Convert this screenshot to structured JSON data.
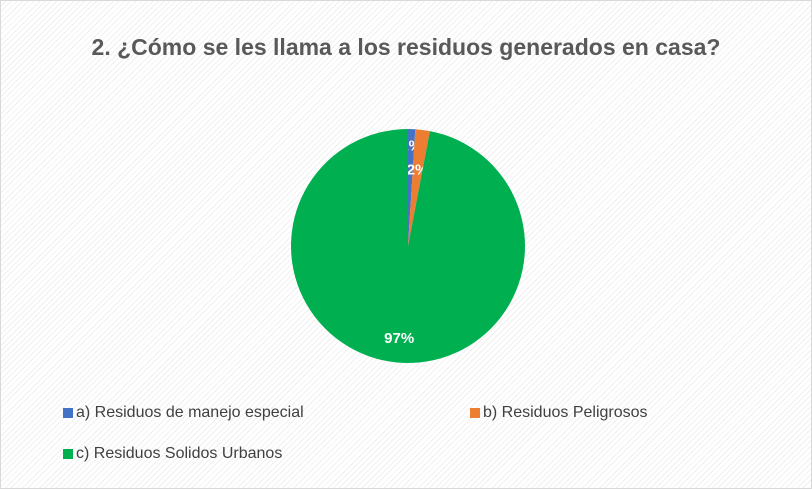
{
  "chart_data": {
    "type": "pie",
    "title": "2. ¿Cómo se les llama a los residuos generados en casa?",
    "categories": [
      "a) Residuos de manejo especial",
      "b) Residuos Peligrosos",
      "c) Residuos Solidos Urbanos"
    ],
    "values": [
      1,
      2,
      97
    ],
    "value_labels": [
      "1%",
      "2%",
      "97%"
    ],
    "colors": [
      "#4472c4",
      "#ed7d31",
      "#00b050"
    ],
    "legend": "bottom"
  }
}
